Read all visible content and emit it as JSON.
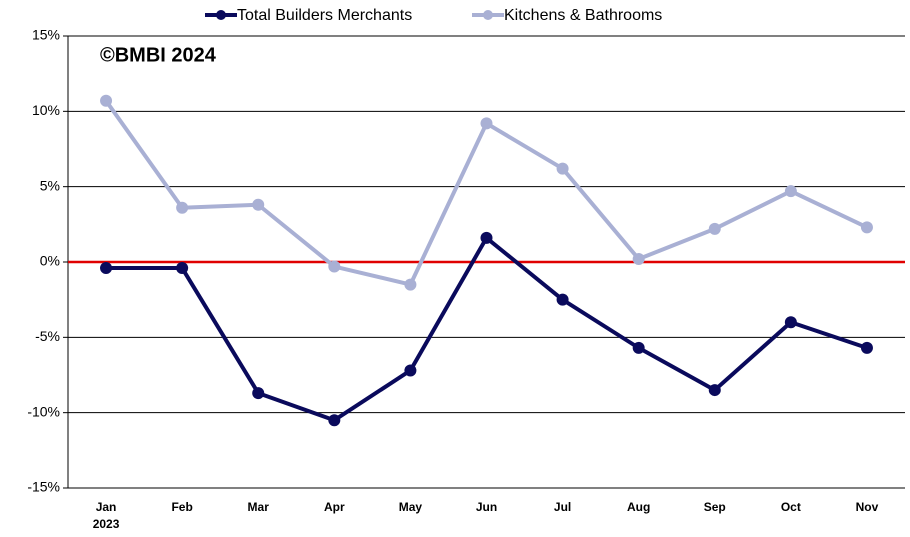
{
  "chart_data": {
    "type": "line",
    "annotation": "©BMBI 2024",
    "categories": [
      "Jan",
      "Feb",
      "Mar",
      "Apr",
      "May",
      "Jun",
      "Jul",
      "Aug",
      "Sep",
      "Oct",
      "Nov"
    ],
    "first_category_year": "2023",
    "series": [
      {
        "name": "Total Builders Merchants",
        "color": "#0a0a5c",
        "values": [
          -0.4,
          -0.4,
          -8.7,
          -10.5,
          -7.2,
          1.6,
          -2.5,
          -5.7,
          -8.5,
          -4.0,
          -5.7
        ]
      },
      {
        "name": "Kitchens & Bathrooms",
        "color": "#a9b0d4",
        "values": [
          10.7,
          3.6,
          3.8,
          -0.3,
          -1.5,
          9.2,
          6.2,
          0.2,
          2.2,
          4.7,
          2.3
        ]
      }
    ],
    "ylim": [
      -15,
      15
    ],
    "yticks": [
      {
        "value": -15,
        "label": "-15%"
      },
      {
        "value": -10,
        "label": "-10%"
      },
      {
        "value": -5,
        "label": "-5%"
      },
      {
        "value": 0,
        "label": "0%"
      },
      {
        "value": 5,
        "label": "5%"
      },
      {
        "value": 10,
        "label": "10%"
      },
      {
        "value": 15,
        "label": "15%"
      }
    ],
    "grid": true,
    "reference_line": {
      "value": 0,
      "color": "#e00000"
    },
    "legend": "top"
  }
}
